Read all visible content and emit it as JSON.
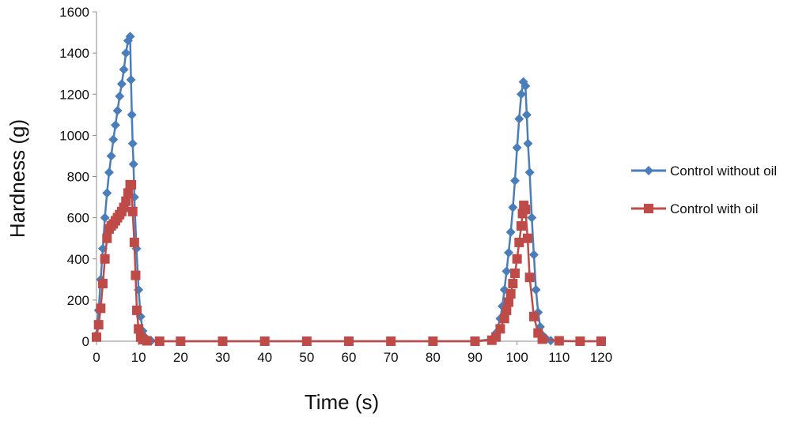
{
  "chart_data": {
    "type": "line",
    "title": "",
    "xlabel": "Time (s)",
    "ylabel": "Hardness (g)",
    "xlim": [
      0,
      120
    ],
    "ylim": [
      0,
      1600
    ],
    "xticks": [
      0,
      10,
      20,
      30,
      40,
      50,
      60,
      70,
      80,
      90,
      100,
      110,
      120
    ],
    "yticks": [
      0,
      200,
      400,
      600,
      800,
      1000,
      1200,
      1400,
      1600
    ],
    "grid": false,
    "legend_position": "right",
    "series": [
      {
        "name": "Control without oil",
        "color": "#4A7EBB",
        "marker": "diamond",
        "x": [
          0,
          0.5,
          1,
          1.5,
          2,
          2.5,
          3,
          3.5,
          4,
          4.5,
          5,
          5.5,
          6,
          6.5,
          7,
          7.5,
          8,
          8.2,
          8.4,
          8.6,
          8.8,
          9,
          9.5,
          10,
          10.5,
          11,
          11.5,
          12,
          13,
          15,
          20,
          30,
          40,
          50,
          60,
          70,
          80,
          90,
          94,
          95,
          96,
          96.5,
          97,
          97.5,
          98,
          98.5,
          99,
          99.5,
          100,
          100.5,
          101,
          101.5,
          102,
          102.3,
          102.6,
          103,
          103.5,
          104,
          104.5,
          105,
          105.5,
          106,
          107,
          108,
          110,
          115,
          120
        ],
        "y": [
          30,
          150,
          300,
          450,
          600,
          720,
          820,
          900,
          980,
          1050,
          1120,
          1190,
          1250,
          1320,
          1400,
          1460,
          1480,
          1270,
          1100,
          960,
          860,
          700,
          450,
          250,
          120,
          50,
          20,
          8,
          2,
          0,
          0,
          0,
          0,
          0,
          0,
          0,
          0,
          0,
          10,
          40,
          110,
          170,
          250,
          340,
          430,
          530,
          650,
          780,
          940,
          1080,
          1200,
          1260,
          1240,
          1100,
          960,
          820,
          600,
          420,
          250,
          140,
          70,
          30,
          10,
          3,
          0,
          0,
          0
        ]
      },
      {
        "name": "Control with oil",
        "color": "#BE4B48",
        "marker": "square",
        "x": [
          0,
          0.5,
          1,
          1.5,
          2,
          2.5,
          3,
          3.5,
          4,
          4.5,
          5,
          5.5,
          6,
          6.5,
          7,
          7.5,
          8,
          8.3,
          8.6,
          9,
          9.3,
          9.6,
          10,
          10.5,
          11,
          12,
          15,
          20,
          30,
          40,
          50,
          60,
          70,
          80,
          90,
          94,
          95,
          96,
          97,
          97.5,
          98,
          98.5,
          99,
          99.5,
          100,
          100.5,
          101,
          101.3,
          101.6,
          102,
          102.5,
          103,
          104,
          105,
          106,
          110,
          115,
          120
        ],
        "y": [
          20,
          80,
          160,
          280,
          400,
          500,
          545,
          560,
          570,
          585,
          600,
          615,
          630,
          650,
          680,
          720,
          760,
          760,
          630,
          480,
          320,
          150,
          60,
          20,
          8,
          2,
          0,
          0,
          0,
          0,
          0,
          0,
          0,
          0,
          0,
          5,
          20,
          60,
          110,
          150,
          190,
          230,
          280,
          330,
          400,
          480,
          560,
          620,
          660,
          640,
          500,
          310,
          120,
          40,
          10,
          2,
          0,
          0
        ]
      }
    ]
  }
}
